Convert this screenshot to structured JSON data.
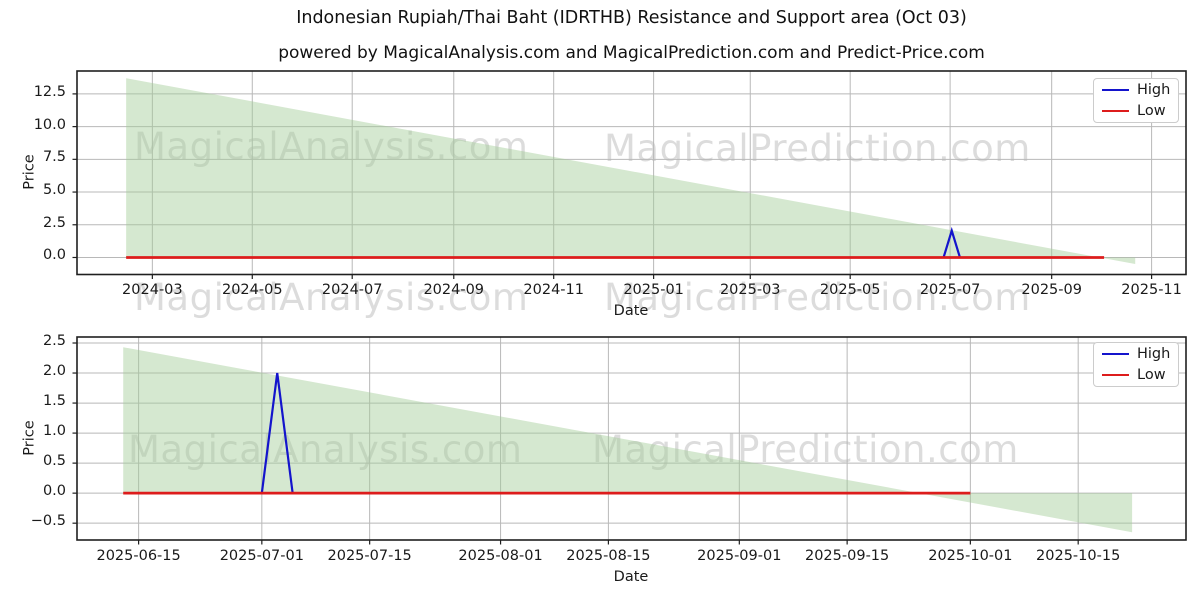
{
  "title": "Indonesian Rupiah/Thai Baht (IDRTHB) Resistance and Support area (Oct 03)",
  "subtitle": "powered by MagicalAnalysis.com and MagicalPrediction.com and Predict-Price.com",
  "legend": {
    "high": "High",
    "low": "Low"
  },
  "watermarks": {
    "left": "MagicalAnalysis.com",
    "right": "MagicalPrediction.com"
  },
  "colors": {
    "high": "#1414cc",
    "low": "#dd1c1c",
    "area": "#a2cc97",
    "area_opacity": 0.45,
    "grid": "#b8b8b8",
    "spine": "#1f1f1f",
    "tick": "#1f1f1f"
  },
  "chart_data": [
    {
      "type": "area-line",
      "ylabel": "Price",
      "xlabel": "Date",
      "legend_position": "upper right",
      "grid": true,
      "xlim": [
        "2024-01-15",
        "2025-11-22"
      ],
      "ylim": [
        -1.3,
        14.25
      ],
      "x_ticks": [
        {
          "date": "2024-03-01",
          "label": "2024-03"
        },
        {
          "date": "2024-05-01",
          "label": "2024-05"
        },
        {
          "date": "2024-07-01",
          "label": "2024-07"
        },
        {
          "date": "2024-09-01",
          "label": "2024-09"
        },
        {
          "date": "2024-11-01",
          "label": "2024-11"
        },
        {
          "date": "2025-01-01",
          "label": "2025-01"
        },
        {
          "date": "2025-03-01",
          "label": "2025-03"
        },
        {
          "date": "2025-05-01",
          "label": "2025-05"
        },
        {
          "date": "2025-07-01",
          "label": "2025-07"
        },
        {
          "date": "2025-09-01",
          "label": "2025-09"
        },
        {
          "date": "2025-11-01",
          "label": "2025-11"
        }
      ],
      "y_ticks": [
        {
          "v": 12.5,
          "label": "12.5"
        },
        {
          "v": 10.0,
          "label": "10.0"
        },
        {
          "v": 7.5,
          "label": "7.5"
        },
        {
          "v": 5.0,
          "label": "5.0"
        },
        {
          "v": 2.5,
          "label": "2.5"
        },
        {
          "v": 0.0,
          "label": "0.0"
        }
      ],
      "area": {
        "name": "Resistance and Support area",
        "resistance": [
          [
            "2024-02-14",
            13.7
          ],
          [
            "2025-10-22",
            -0.5
          ]
        ],
        "support": [
          [
            "2024-02-14",
            0.0
          ],
          [
            "2025-10-22",
            0.0
          ]
        ]
      },
      "series": [
        {
          "name": "High",
          "color_key": "high",
          "width": 2.2,
          "points": [
            [
              "2025-06-27",
              0.0
            ],
            [
              "2025-07-02",
              2.05
            ],
            [
              "2025-07-07",
              0.0
            ]
          ]
        },
        {
          "name": "Low",
          "color_key": "low",
          "width": 2.8,
          "points": [
            [
              "2024-02-14",
              0.0
            ],
            [
              "2025-10-03",
              0.0
            ]
          ]
        }
      ]
    },
    {
      "type": "area-line",
      "ylabel": "Price",
      "xlabel": "Date",
      "legend_position": "upper right",
      "grid": true,
      "xlim": [
        "2025-06-07",
        "2025-10-29"
      ],
      "ylim": [
        -0.78,
        2.6
      ],
      "x_ticks": [
        {
          "date": "2025-06-15",
          "label": "2025-06-15"
        },
        {
          "date": "2025-07-01",
          "label": "2025-07-01"
        },
        {
          "date": "2025-07-15",
          "label": "2025-07-15"
        },
        {
          "date": "2025-08-01",
          "label": "2025-08-01"
        },
        {
          "date": "2025-08-15",
          "label": "2025-08-15"
        },
        {
          "date": "2025-09-01",
          "label": "2025-09-01"
        },
        {
          "date": "2025-09-15",
          "label": "2025-09-15"
        },
        {
          "date": "2025-10-01",
          "label": "2025-10-01"
        },
        {
          "date": "2025-10-15",
          "label": "2025-10-15"
        }
      ],
      "y_ticks": [
        {
          "v": 2.5,
          "label": "2.5"
        },
        {
          "v": 2.0,
          "label": "2.0"
        },
        {
          "v": 1.5,
          "label": "1.5"
        },
        {
          "v": 1.0,
          "label": "1.0"
        },
        {
          "v": 0.5,
          "label": "0.5"
        },
        {
          "v": 0.0,
          "label": "0.0"
        },
        {
          "v": -0.5,
          "label": "−0.5"
        }
      ],
      "area": {
        "name": "Resistance and Support area",
        "resistance": [
          [
            "2025-06-13",
            2.43
          ],
          [
            "2025-10-22",
            -0.65
          ]
        ],
        "support": [
          [
            "2025-06-13",
            0.0
          ],
          [
            "2025-10-22",
            0.0
          ]
        ]
      },
      "series": [
        {
          "name": "High",
          "color_key": "high",
          "width": 2.2,
          "points": [
            [
              "2025-07-01",
              0.0
            ],
            [
              "2025-07-03",
              2.0
            ],
            [
              "2025-07-05",
              0.0
            ]
          ]
        },
        {
          "name": "Low",
          "color_key": "low",
          "width": 2.8,
          "points": [
            [
              "2025-06-13",
              0.0
            ],
            [
              "2025-10-01",
              0.0
            ]
          ]
        }
      ]
    }
  ]
}
